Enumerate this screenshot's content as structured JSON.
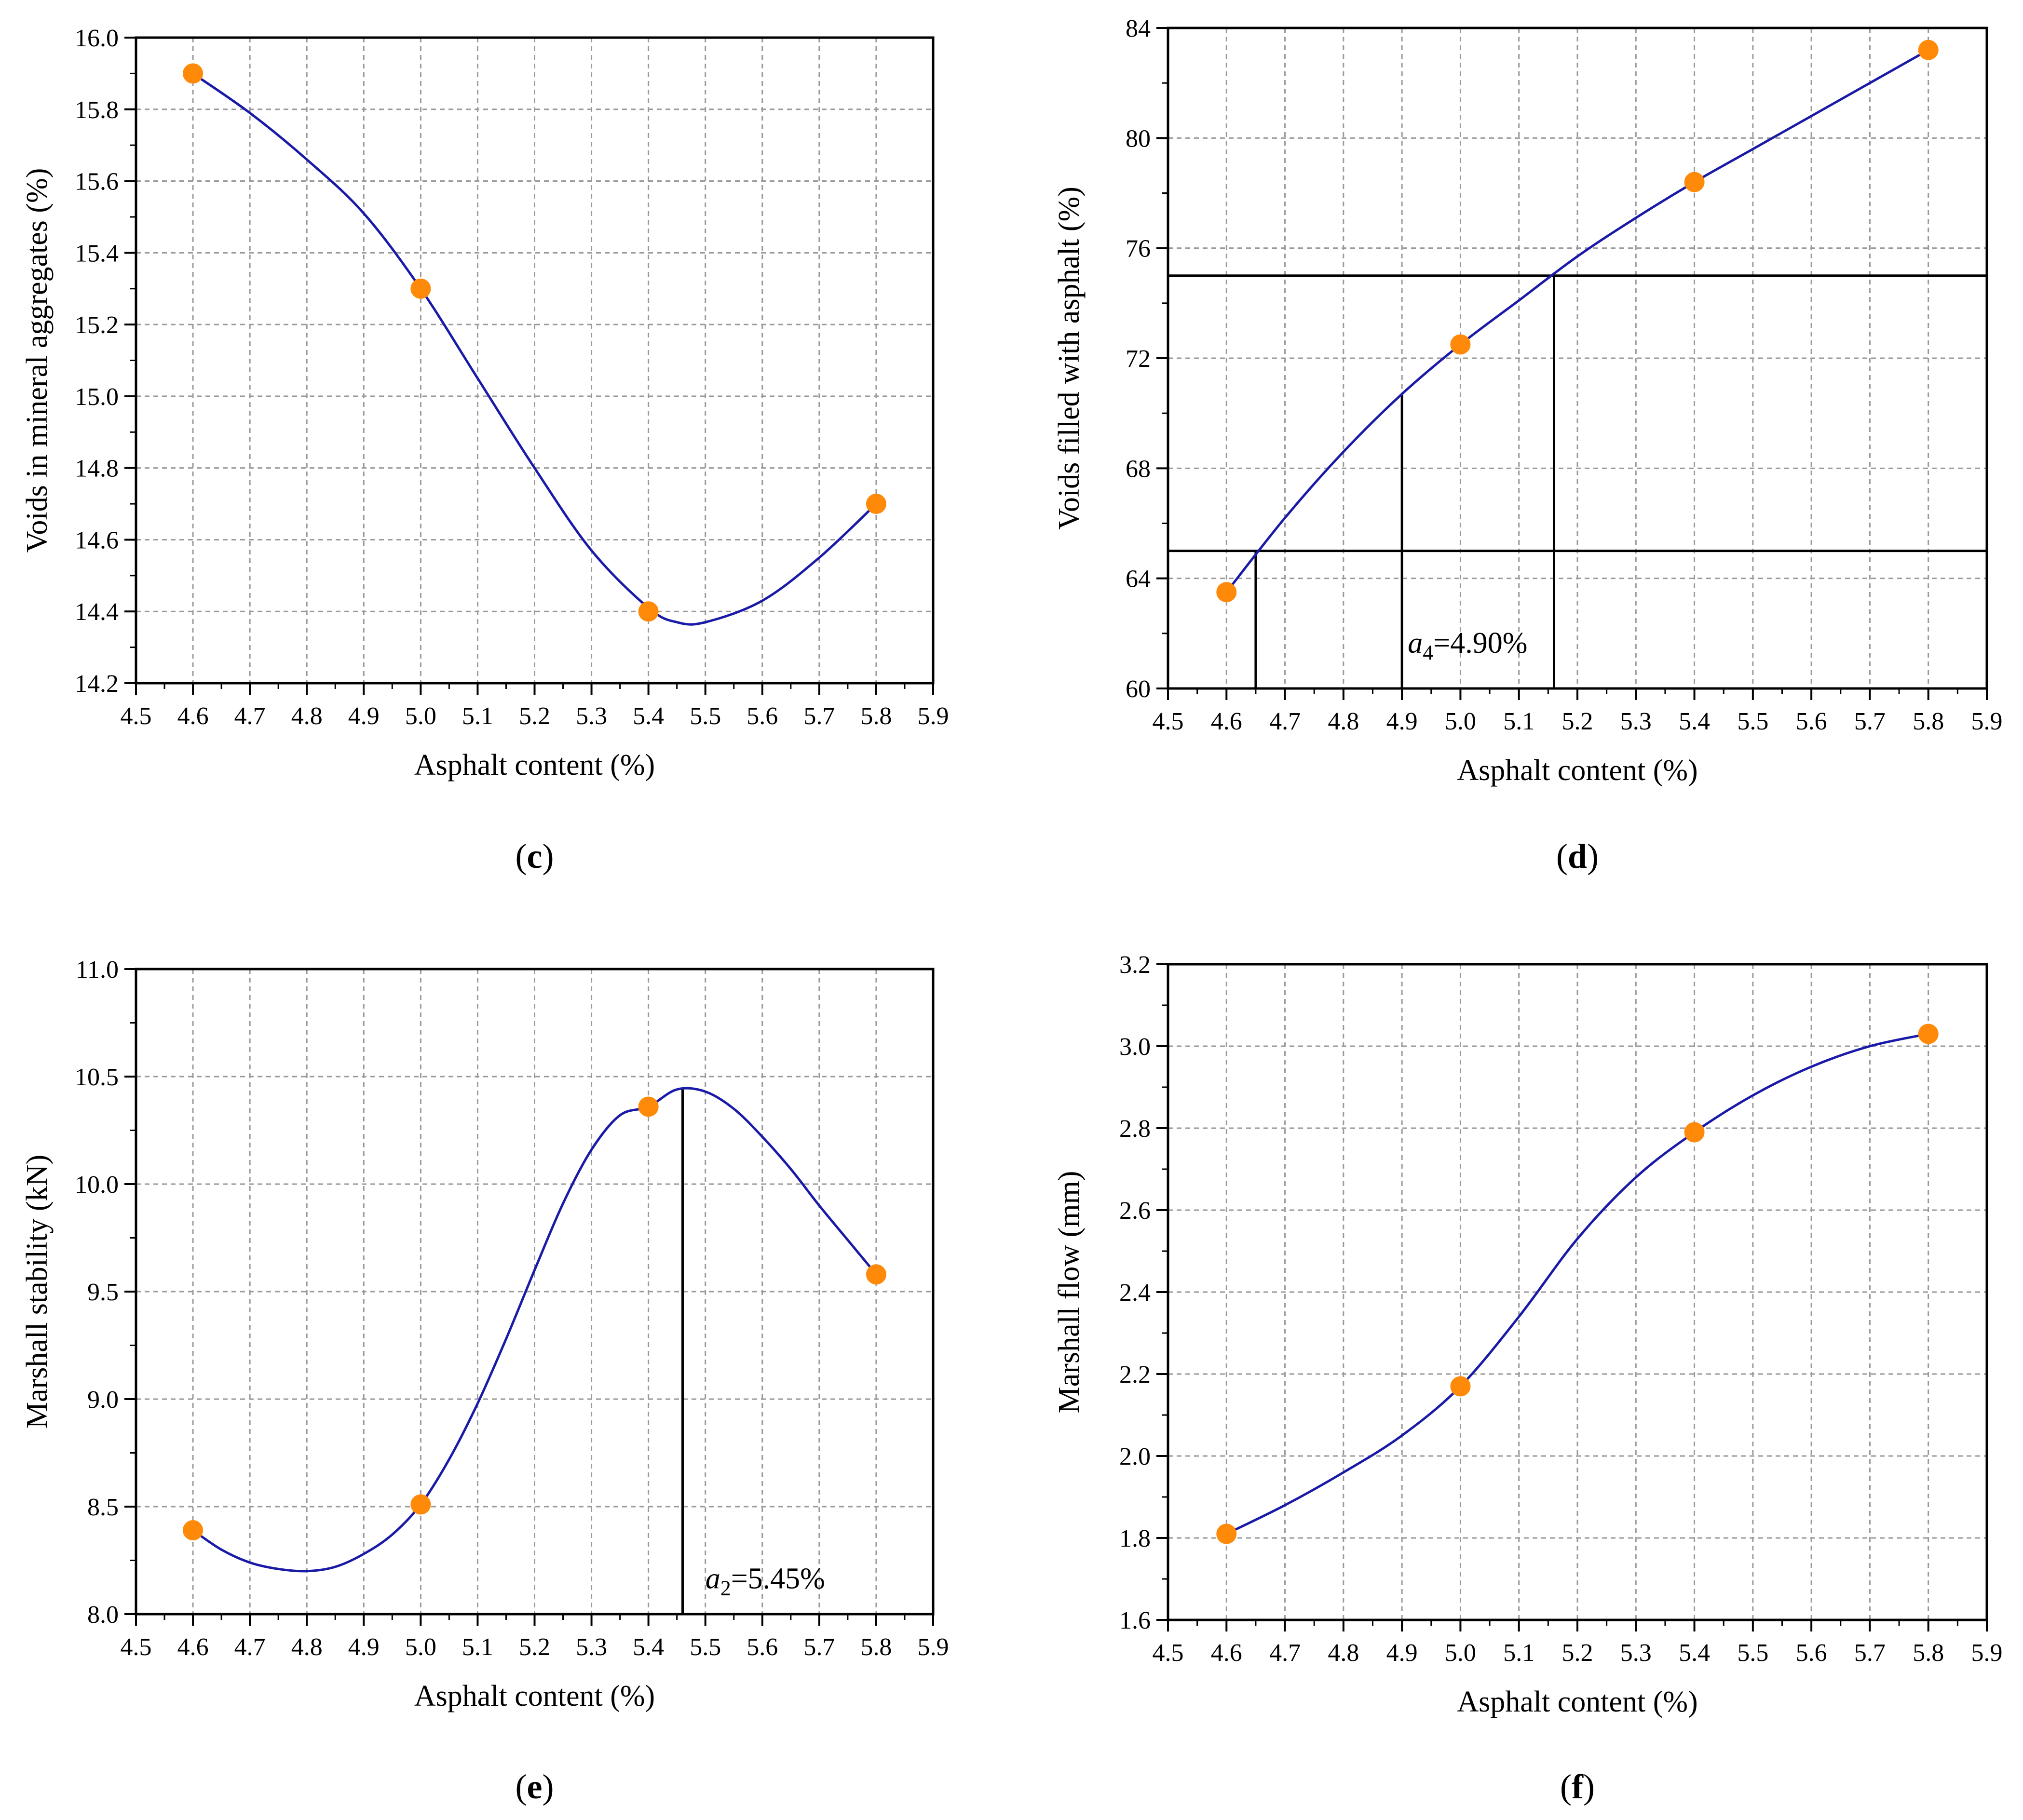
{
  "figure": {
    "colors": {
      "curve": "#1a1aa8",
      "marker": "#ff8a0a",
      "grid": "#9a9a9a",
      "axis": "#000000"
    }
  },
  "chart_data": [
    {
      "type": "scatter",
      "panel_label": "c",
      "xlabel": "Asphalt content (%)",
      "ylabel": "Voids in mineral aggregates (%)",
      "xlim": [
        4.5,
        5.9
      ],
      "ylim": [
        14.2,
        16.0
      ],
      "xticks": [
        4.5,
        4.6,
        4.7,
        4.8,
        4.9,
        5.0,
        5.1,
        5.2,
        5.3,
        5.4,
        5.5,
        5.6,
        5.7,
        5.8,
        5.9
      ],
      "yticks": [
        14.2,
        14.4,
        14.6,
        14.8,
        15.0,
        15.2,
        15.4,
        15.6,
        15.8,
        16.0
      ],
      "x_decimals": 1,
      "y_decimals": 1,
      "grid": true,
      "points": {
        "x": [
          4.6,
          5.0,
          5.4,
          5.8
        ],
        "y": [
          15.9,
          15.3,
          14.4,
          14.7
        ]
      },
      "curve": {
        "x": [
          4.6,
          4.7,
          4.8,
          4.9,
          5.0,
          5.1,
          5.2,
          5.3,
          5.4,
          5.45,
          5.5,
          5.6,
          5.7,
          5.8
        ],
        "y": [
          15.9,
          15.79,
          15.66,
          15.51,
          15.3,
          15.05,
          14.8,
          14.57,
          14.41,
          14.37,
          14.37,
          14.43,
          14.55,
          14.7
        ]
      },
      "hlines": [],
      "vlines": [],
      "annotations": []
    },
    {
      "type": "scatter",
      "panel_label": "d",
      "xlabel": "Asphalt content (%)",
      "ylabel": "Voids filled with asphalt (%)",
      "xlim": [
        4.5,
        5.9
      ],
      "ylim": [
        60,
        84
      ],
      "xticks": [
        4.5,
        4.6,
        4.7,
        4.8,
        4.9,
        5.0,
        5.1,
        5.2,
        5.3,
        5.4,
        5.5,
        5.6,
        5.7,
        5.8,
        5.9
      ],
      "yticks": [
        60,
        64,
        68,
        72,
        76,
        80,
        84
      ],
      "x_decimals": 1,
      "y_decimals": 0,
      "grid": true,
      "points": {
        "x": [
          4.6,
          5.0,
          5.4,
          5.8
        ],
        "y": [
          63.5,
          72.5,
          78.4,
          83.2
        ]
      },
      "curve": {
        "x": [
          4.6,
          4.7,
          4.8,
          4.9,
          5.0,
          5.1,
          5.2,
          5.3,
          5.4,
          5.5,
          5.6,
          5.7,
          5.8
        ],
        "y": [
          63.5,
          66.2,
          68.6,
          70.7,
          72.5,
          74.1,
          75.7,
          77.1,
          78.4,
          79.6,
          80.8,
          82.0,
          83.2
        ]
      },
      "hlines": [
        65,
        75
      ],
      "vlines": [
        {
          "x": 4.65,
          "y0": 60,
          "y1": 65
        },
        {
          "x": 4.9,
          "y0": 60,
          "y1": 70.7
        },
        {
          "x": 5.16,
          "y0": 60,
          "y1": 75
        }
      ],
      "annotations": [
        {
          "italic": "a",
          "sub": "4",
          "rest": "=4.90%",
          "x": 4.91,
          "y": 61.3
        }
      ]
    },
    {
      "type": "scatter",
      "panel_label": "e",
      "xlabel": "Asphalt content (%)",
      "ylabel": "Marshall stability (kN)",
      "xlim": [
        4.5,
        5.9
      ],
      "ylim": [
        8.0,
        11.0
      ],
      "xticks": [
        4.5,
        4.6,
        4.7,
        4.8,
        4.9,
        5.0,
        5.1,
        5.2,
        5.3,
        5.4,
        5.5,
        5.6,
        5.7,
        5.8,
        5.9
      ],
      "yticks": [
        8.0,
        8.5,
        9.0,
        9.5,
        10.0,
        10.5,
        11.0
      ],
      "x_decimals": 1,
      "y_decimals": 1,
      "grid": true,
      "points": {
        "x": [
          4.6,
          5.0,
          5.4,
          5.8
        ],
        "y": [
          8.39,
          8.51,
          10.36,
          9.58
        ]
      },
      "curve": {
        "x": [
          4.6,
          4.65,
          4.7,
          4.75,
          4.8,
          4.85,
          4.9,
          4.95,
          5.0,
          5.05,
          5.1,
          5.15,
          5.2,
          5.25,
          5.3,
          5.35,
          5.4,
          5.45,
          5.5,
          5.55,
          5.6,
          5.65,
          5.7,
          5.75,
          5.8
        ],
        "y": [
          8.39,
          8.3,
          8.24,
          8.21,
          8.2,
          8.22,
          8.28,
          8.37,
          8.51,
          8.72,
          8.98,
          9.28,
          9.6,
          9.91,
          10.16,
          10.32,
          10.36,
          10.44,
          10.43,
          10.35,
          10.22,
          10.07,
          9.9,
          9.74,
          9.58
        ]
      },
      "hlines": [],
      "vlines": [
        {
          "x": 5.46,
          "y0": 8.0,
          "y1": 10.44
        }
      ],
      "annotations": [
        {
          "italic": "a",
          "sub": "2",
          "rest": "=5.45%",
          "x": 5.5,
          "y": 8.12
        }
      ]
    },
    {
      "type": "scatter",
      "panel_label": "f",
      "xlabel": "Asphalt content (%)",
      "ylabel": "Marshall flow (mm)",
      "xlim": [
        4.5,
        5.9
      ],
      "ylim": [
        1.6,
        3.2
      ],
      "xticks": [
        4.5,
        4.6,
        4.7,
        4.8,
        4.9,
        5.0,
        5.1,
        5.2,
        5.3,
        5.4,
        5.5,
        5.6,
        5.7,
        5.8,
        5.9
      ],
      "yticks": [
        1.6,
        1.8,
        2.0,
        2.2,
        2.4,
        2.6,
        2.8,
        3.0,
        3.2
      ],
      "x_decimals": 1,
      "y_decimals": 1,
      "grid": true,
      "points": {
        "x": [
          4.6,
          5.0,
          5.4,
          5.8
        ],
        "y": [
          1.81,
          2.17,
          2.79,
          3.03
        ]
      },
      "curve": {
        "x": [
          4.6,
          4.7,
          4.8,
          4.9,
          5.0,
          5.1,
          5.2,
          5.3,
          5.4,
          5.5,
          5.6,
          5.7,
          5.8
        ],
        "y": [
          1.81,
          1.88,
          1.96,
          2.05,
          2.17,
          2.34,
          2.53,
          2.68,
          2.79,
          2.88,
          2.95,
          3.0,
          3.03
        ]
      },
      "hlines": [],
      "vlines": [],
      "annotations": []
    }
  ]
}
